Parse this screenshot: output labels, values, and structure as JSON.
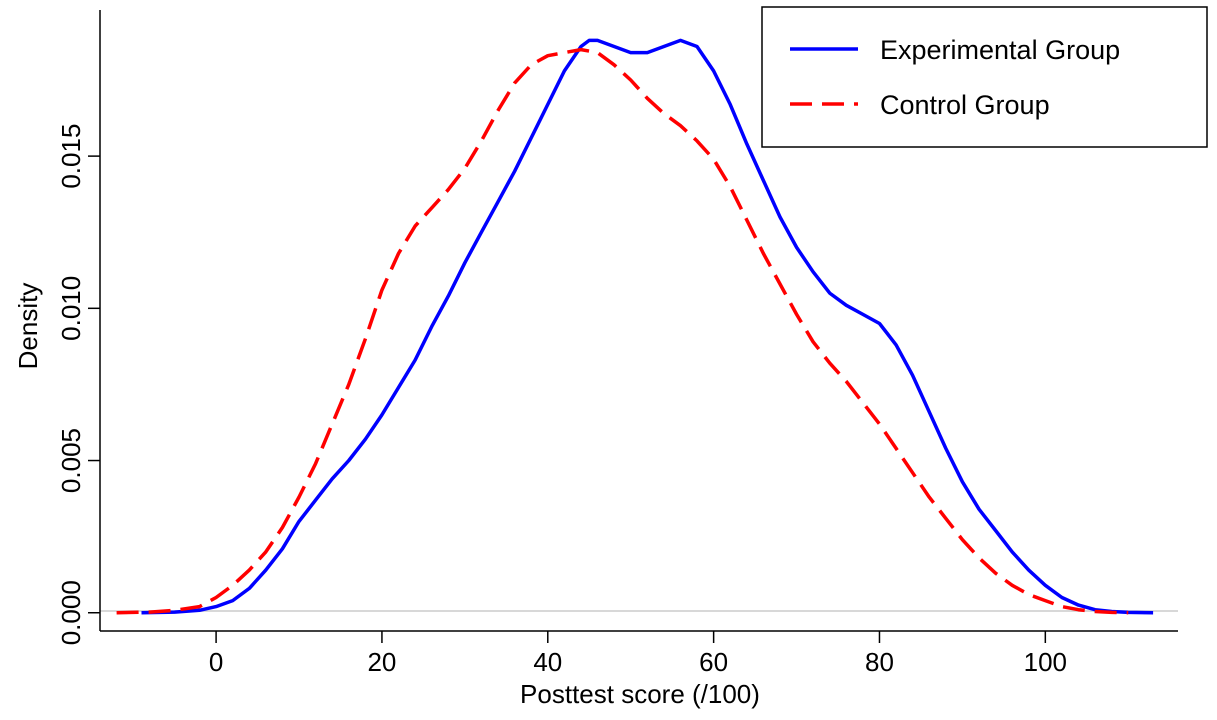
{
  "chart_data": {
    "type": "line",
    "xlabel": "Posttest score (/100)",
    "ylabel": "Density",
    "xlim": [
      -14,
      116
    ],
    "ylim": [
      -0.0006,
      0.0198
    ],
    "x_ticks": [
      0,
      20,
      40,
      60,
      80,
      100
    ],
    "x_tick_labels": [
      "0",
      "20",
      "40",
      "60",
      "80",
      "100"
    ],
    "y_ticks": [
      0.0,
      0.005,
      0.01,
      0.015
    ],
    "y_tick_labels": [
      "0.000",
      "0.005",
      "0.010",
      "0.015"
    ],
    "grid": false,
    "legend_position": "top-right",
    "series": [
      {
        "name": "Experimental Group",
        "color": "#0000ff",
        "dash": "solid",
        "points": [
          [
            -9,
            0.0
          ],
          [
            -5,
            2e-05
          ],
          [
            -2,
            8e-05
          ],
          [
            0,
            0.0002
          ],
          [
            2,
            0.0004
          ],
          [
            4,
            0.0008
          ],
          [
            6,
            0.0014
          ],
          [
            8,
            0.0021
          ],
          [
            10,
            0.003
          ],
          [
            12,
            0.0037
          ],
          [
            14,
            0.0044
          ],
          [
            16,
            0.005
          ],
          [
            18,
            0.0057
          ],
          [
            20,
            0.0065
          ],
          [
            22,
            0.0074
          ],
          [
            24,
            0.0083
          ],
          [
            26,
            0.0094
          ],
          [
            28,
            0.0104
          ],
          [
            30,
            0.0115
          ],
          [
            32,
            0.0125
          ],
          [
            34,
            0.0135
          ],
          [
            36,
            0.0145
          ],
          [
            38,
            0.0156
          ],
          [
            40,
            0.0167
          ],
          [
            42,
            0.0178
          ],
          [
            44,
            0.0186
          ],
          [
            45,
            0.0188
          ],
          [
            46,
            0.0188
          ],
          [
            48,
            0.0186
          ],
          [
            50,
            0.0184
          ],
          [
            52,
            0.0184
          ],
          [
            54,
            0.0186
          ],
          [
            56,
            0.0188
          ],
          [
            58,
            0.0186
          ],
          [
            60,
            0.0178
          ],
          [
            62,
            0.0167
          ],
          [
            64,
            0.0154
          ],
          [
            66,
            0.0142
          ],
          [
            68,
            0.013
          ],
          [
            70,
            0.012
          ],
          [
            72,
            0.0112
          ],
          [
            74,
            0.0105
          ],
          [
            76,
            0.0101
          ],
          [
            78,
            0.0098
          ],
          [
            80,
            0.0095
          ],
          [
            82,
            0.0088
          ],
          [
            84,
            0.0078
          ],
          [
            86,
            0.0066
          ],
          [
            88,
            0.0054
          ],
          [
            90,
            0.0043
          ],
          [
            92,
            0.0034
          ],
          [
            94,
            0.0027
          ],
          [
            96,
            0.002
          ],
          [
            98,
            0.0014
          ],
          [
            100,
            0.0009
          ],
          [
            102,
            0.0005
          ],
          [
            104,
            0.00025
          ],
          [
            106,
            0.0001
          ],
          [
            108,
            4e-05
          ],
          [
            110,
            1e-05
          ],
          [
            113,
            0.0
          ]
        ]
      },
      {
        "name": "Control Group",
        "color": "#ff0000",
        "dash": "dashed",
        "points": [
          [
            -12,
            0.0
          ],
          [
            -8,
            2e-05
          ],
          [
            -5,
            8e-05
          ],
          [
            -2,
            0.0002
          ],
          [
            0,
            0.0005
          ],
          [
            2,
            0.0009
          ],
          [
            4,
            0.0014
          ],
          [
            6,
            0.002
          ],
          [
            8,
            0.0028
          ],
          [
            10,
            0.0038
          ],
          [
            12,
            0.0049
          ],
          [
            14,
            0.0062
          ],
          [
            16,
            0.0075
          ],
          [
            18,
            0.009
          ],
          [
            20,
            0.0106
          ],
          [
            22,
            0.0118
          ],
          [
            24,
            0.0127
          ],
          [
            26,
            0.0133
          ],
          [
            28,
            0.0139
          ],
          [
            30,
            0.0146
          ],
          [
            32,
            0.0155
          ],
          [
            34,
            0.0165
          ],
          [
            36,
            0.0174
          ],
          [
            38,
            0.018
          ],
          [
            40,
            0.0183
          ],
          [
            42,
            0.0184
          ],
          [
            44,
            0.0185
          ],
          [
            46,
            0.0184
          ],
          [
            48,
            0.018
          ],
          [
            50,
            0.0175
          ],
          [
            52,
            0.0169
          ],
          [
            54,
            0.0164
          ],
          [
            56,
            0.016
          ],
          [
            58,
            0.0155
          ],
          [
            60,
            0.0149
          ],
          [
            62,
            0.014
          ],
          [
            64,
            0.0129
          ],
          [
            66,
            0.0118
          ],
          [
            68,
            0.0108
          ],
          [
            70,
            0.0098
          ],
          [
            72,
            0.0089
          ],
          [
            74,
            0.0082
          ],
          [
            76,
            0.0076
          ],
          [
            78,
            0.0069
          ],
          [
            80,
            0.0062
          ],
          [
            82,
            0.0054
          ],
          [
            84,
            0.0046
          ],
          [
            86,
            0.0038
          ],
          [
            88,
            0.0031
          ],
          [
            90,
            0.0024
          ],
          [
            92,
            0.0018
          ],
          [
            94,
            0.0013
          ],
          [
            96,
            0.0009
          ],
          [
            98,
            0.0006
          ],
          [
            100,
            0.0004
          ],
          [
            102,
            0.0002
          ],
          [
            104,
            0.0001
          ],
          [
            106,
            4e-05
          ],
          [
            108,
            1e-05
          ],
          [
            110,
            0.0
          ]
        ]
      }
    ]
  }
}
